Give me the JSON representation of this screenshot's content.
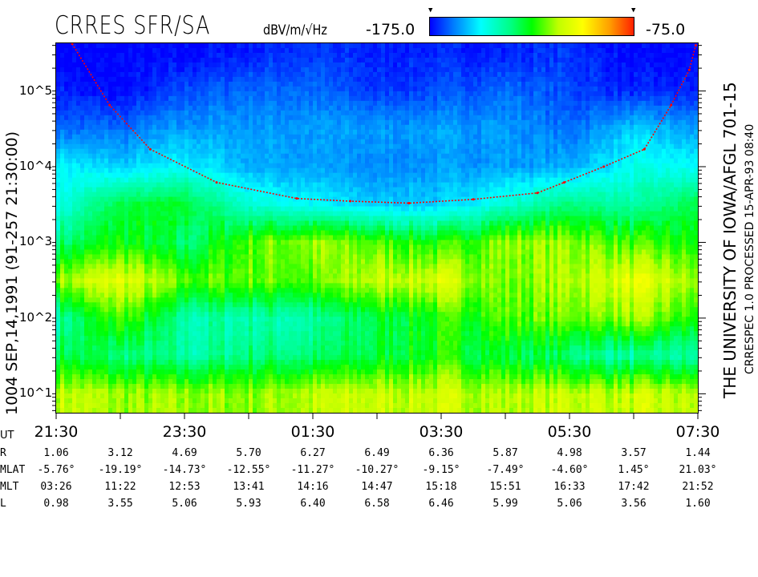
{
  "header": {
    "title": "CRRES SFR/SA",
    "units": "dBV/m/√Hz",
    "colorbar_min_label": "-175.0",
    "colorbar_max_label": "-75.0"
  },
  "left_label": "1004   SEP,14,1991   (91-257 21:30:00)",
  "right_label_1": "THE UNIVERSITY OF IOWA/AFGL 701-15",
  "right_label_2": "CRRESPEC 1.0   PROCESSED 15-APR-93   08:40",
  "ephemeris": {
    "labels": {
      "ut": "UT",
      "r": "R",
      "mlat": "MLAT",
      "mlt": "MLT",
      "l": "L"
    },
    "ut": [
      "21:30",
      "23:30",
      "01:30",
      "03:30",
      "05:30",
      "07:30"
    ],
    "r": [
      "1.06",
      "3.12",
      "4.69",
      "5.70",
      "6.27",
      "6.49",
      "6.36",
      "5.87",
      "4.98",
      "3.57",
      "1.44"
    ],
    "mlat": [
      "-5.76°",
      "-19.19°",
      "-14.73°",
      "-12.55°",
      "-11.27°",
      "-10.27°",
      "-9.15°",
      "-7.49°",
      "-4.60°",
      "1.45°",
      "21.03°"
    ],
    "mlt": [
      "03:26",
      "11:22",
      "12:53",
      "13:41",
      "14:16",
      "14:47",
      "15:18",
      "15:51",
      "16:33",
      "17:42",
      "21:52"
    ],
    "l": [
      "0.98",
      "3.55",
      "5.06",
      "5.93",
      "6.40",
      "6.58",
      "6.46",
      "5.99",
      "5.06",
      "3.56",
      "1.60"
    ]
  },
  "chart_data": {
    "type": "heatmap",
    "title": "CRRES SFR/SA",
    "colorbar": {
      "label": "dBV/m/√Hz",
      "range": [
        -175.0,
        -75.0
      ],
      "colormap": [
        "#0000ff",
        "#00ffff",
        "#00ff00",
        "#ffff00",
        "#ff2000"
      ]
    },
    "x_axis": {
      "start": "21:30",
      "end": "07:30",
      "tick_labels": [
        "21:30",
        "23:30",
        "01:30",
        "03:30",
        "05:30",
        "07:30"
      ]
    },
    "y_axis": {
      "scale": "log",
      "range": [
        5.6,
        420000
      ],
      "tick_labels": [
        "10^1",
        "10^2",
        "10^3",
        "10^4",
        "10^5"
      ],
      "tick_values": [
        10,
        100,
        1000,
        10000,
        100000
      ]
    },
    "grid_times": [
      "21:30",
      "22:30",
      "23:30",
      "00:30",
      "01:30",
      "02:30",
      "03:30",
      "04:30",
      "05:30",
      "06:30",
      "07:30"
    ],
    "grid_frequencies": [
      316228,
      100000,
      31623,
      10000,
      3162,
      1000,
      316,
      100,
      32,
      10
    ],
    "intensity_db": [
      [
        -175,
        -172,
        -165,
        -150,
        -148,
        -135,
        -115,
        -140,
        -130,
        -110
      ],
      [
        -175,
        -175,
        -165,
        -155,
        -130,
        -125,
        -105,
        -120,
        -135,
        -115
      ],
      [
        -175,
        -168,
        -160,
        -150,
        -128,
        -135,
        -120,
        -140,
        -140,
        -115
      ],
      [
        -172,
        -165,
        -160,
        -158,
        -145,
        -120,
        -118,
        -140,
        -135,
        -115
      ],
      [
        -170,
        -165,
        -160,
        -160,
        -150,
        -115,
        -120,
        -140,
        -135,
        -112
      ],
      [
        -172,
        -170,
        -160,
        -162,
        -155,
        -120,
        -110,
        -130,
        -130,
        -110
      ],
      [
        -172,
        -168,
        -160,
        -160,
        -155,
        -125,
        -108,
        -125,
        -125,
        -110
      ],
      [
        -172,
        -165,
        -160,
        -160,
        -145,
        -115,
        -118,
        -120,
        -130,
        -112
      ],
      [
        -170,
        -168,
        -165,
        -158,
        -135,
        -115,
        -112,
        -118,
        -135,
        -110
      ],
      [
        -175,
        -172,
        -155,
        -148,
        -140,
        -122,
        -105,
        -115,
        -140,
        -110
      ],
      [
        -175,
        -172,
        -160,
        -150,
        -130,
        -125,
        -115,
        -125,
        -140,
        -112
      ]
    ],
    "red_line": {
      "times": [
        "21:45",
        "22:20",
        "22:58",
        "00:00",
        "01:15",
        "02:05",
        "03:00",
        "04:00",
        "05:00",
        "05:25",
        "06:02",
        "06:40",
        "07:05",
        "07:22",
        "07:28"
      ],
      "frequencies": [
        420000,
        65000,
        17000,
        6200,
        3800,
        3500,
        3300,
        3700,
        4500,
        6200,
        10000,
        17000,
        65000,
        190000,
        400000
      ],
      "color": "#ff0000"
    }
  }
}
